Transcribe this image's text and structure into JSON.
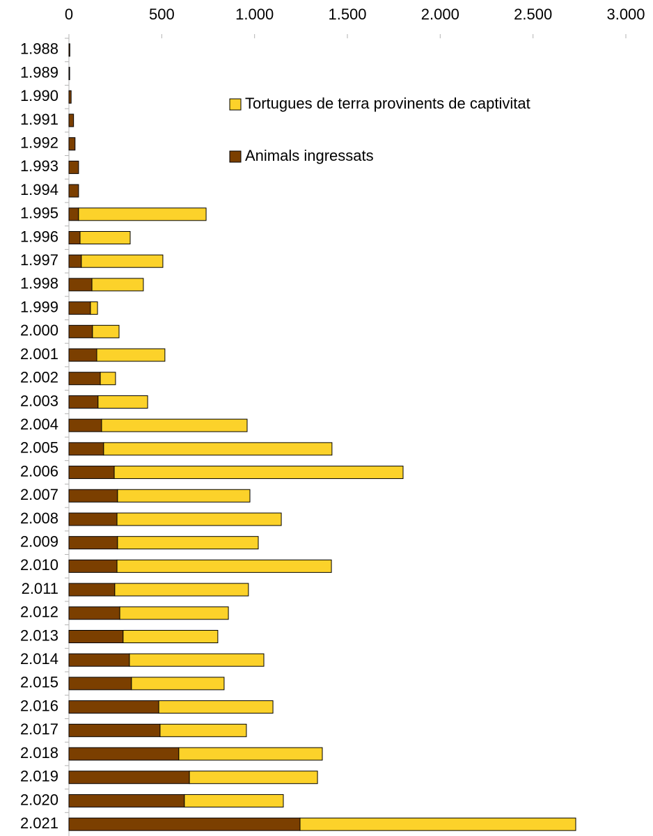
{
  "chart_data": {
    "type": "stacked-bar-horizontal",
    "categories": [
      "1.988",
      "1.989",
      "1.990",
      "1.991",
      "1.992",
      "1.993",
      "1.994",
      "1.995",
      "1.996",
      "1.997",
      "1.998",
      "1.999",
      "2.000",
      "2.001",
      "2.002",
      "2.003",
      "2.004",
      "2.005",
      "2.006",
      "2.007",
      "2.008",
      "2.009",
      "2.010",
      "2.011",
      "2.012",
      "2.013",
      "2.014",
      "2.015",
      "2.016",
      "2.017",
      "2.018",
      "2.019",
      "2.020",
      "2.021"
    ],
    "series": [
      {
        "name": "Animals ingressats",
        "color": "#7b3f00",
        "values": [
          5,
          4,
          12,
          25,
          33,
          52,
          52,
          52,
          60,
          67,
          124,
          116,
          127,
          150,
          169,
          157,
          176,
          187,
          244,
          262,
          259,
          262,
          259,
          247,
          274,
          292,
          326,
          337,
          484,
          491,
          592,
          649,
          622,
          1245
        ]
      },
      {
        "name": "Tortugues de terra provinents de captivitat",
        "color": "#fcd22a",
        "values": [
          0,
          0,
          0,
          0,
          0,
          0,
          0,
          687,
          270,
          439,
          277,
          38,
          143,
          367,
          82,
          267,
          784,
          1230,
          1556,
          713,
          885,
          758,
          1155,
          720,
          585,
          510,
          724,
          499,
          615,
          465,
          773,
          690,
          533,
          1485
        ]
      }
    ],
    "xlim": [
      0,
      3000
    ],
    "xticks": [
      0,
      500,
      {
        "value": 1000,
        "label": "1.000"
      },
      {
        "value": 1500,
        "label": "1.500"
      },
      {
        "value": 2000,
        "label": "2.000"
      },
      {
        "value": 2500,
        "label": "2.500"
      },
      {
        "value": 3000,
        "label": "3.000"
      }
    ],
    "legend": "top-right"
  }
}
